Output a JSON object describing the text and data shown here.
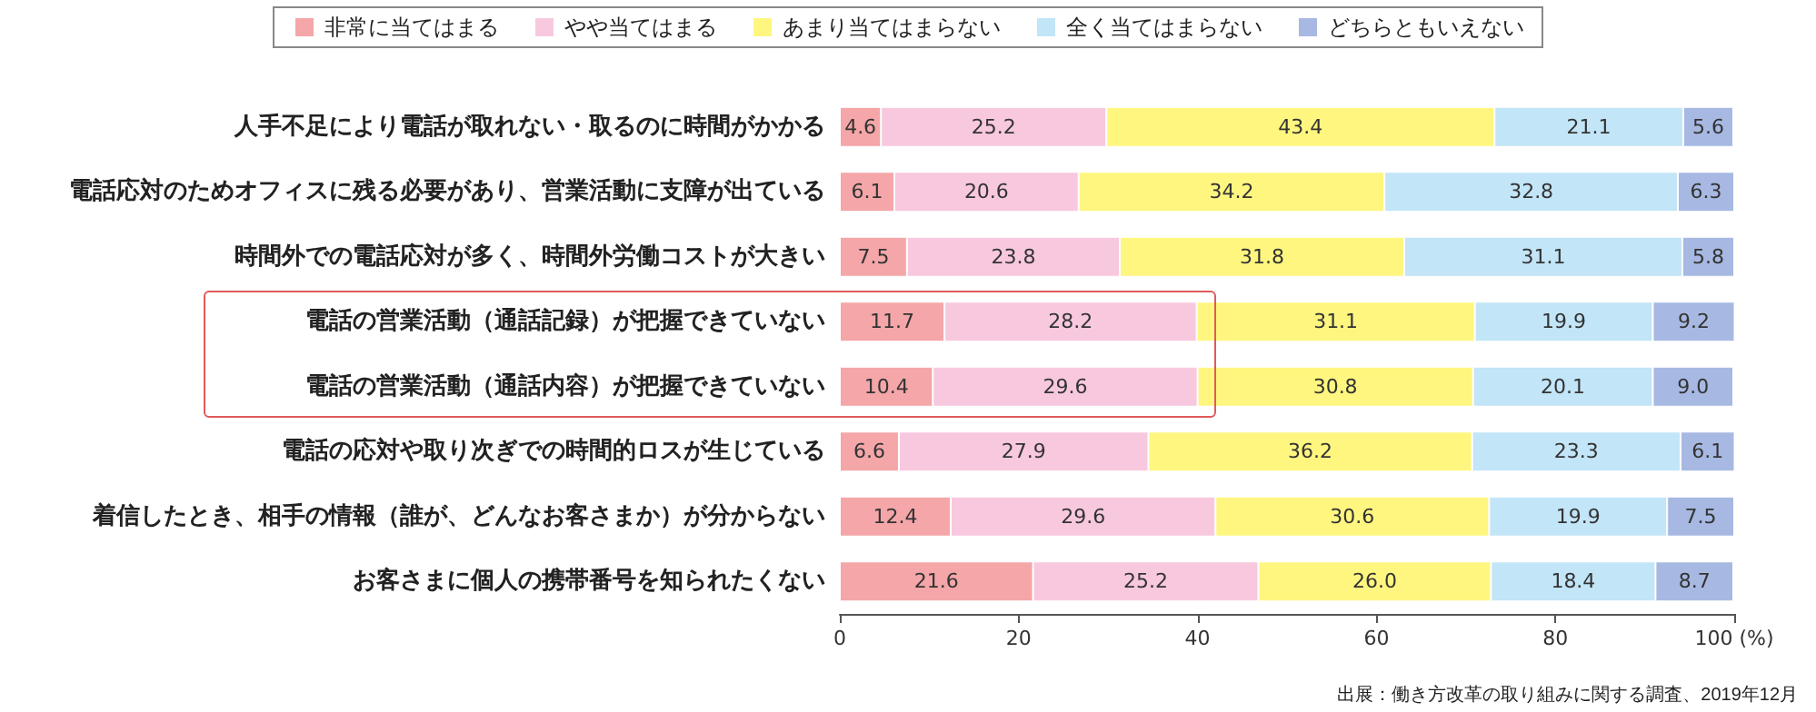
{
  "chart_data": {
    "type": "bar",
    "orientation": "horizontal",
    "stacked": true,
    "data_labels": true,
    "legend": "top",
    "grid": false,
    "categories": [
      "人手不足により電話が取れない・取るのに時間がかかる",
      "電話応対のためオフィスに残る必要があり、営業活動に支障が出ている",
      "時間外での電話応対が多く、時間外労働コストが大きい",
      "電話の営業活動（通話記録）が把握できていない",
      "電話の営業活動（通話内容）が把握できていない",
      "電話の応対や取り次ぎでの時間的ロスが生じている",
      "着信したとき、相手の情報（誰が、どんなお客さまか）が分からない",
      "お客さまに個人の携帯番号を知られたくない"
    ],
    "series": [
      {
        "name": "非常に当てはまる",
        "color": "#f4a6a8",
        "values": [
          4.6,
          6.1,
          7.5,
          11.7,
          10.4,
          6.6,
          12.4,
          21.6
        ],
        "value_labels": [
          "4.6",
          "6.1",
          "7.5",
          "11.7",
          "10.4",
          "6.6",
          "12.4",
          "21.6"
        ]
      },
      {
        "name": "やや当てはまる",
        "color": "#f8c8df",
        "values": [
          25.2,
          20.6,
          23.8,
          28.2,
          29.6,
          27.9,
          29.6,
          25.2
        ]
      },
      {
        "name": "あまり当てはまらない",
        "color": "#fff680",
        "values": [
          43.4,
          34.2,
          31.8,
          31.1,
          30.8,
          36.2,
          30.6,
          26.0
        ],
        "value_labels": [
          "43.4",
          "34.2",
          "31.8",
          "31.1",
          "30.8",
          "36.2",
          "30.6",
          "26.0"
        ]
      },
      {
        "name": "全く当てはまらない",
        "color": "#c2e5f7",
        "values": [
          21.1,
          32.8,
          31.1,
          19.9,
          20.1,
          23.3,
          19.9,
          18.4
        ]
      },
      {
        "name": "どちらともいえない",
        "color": "#a7b9e2",
        "values": [
          5.6,
          6.3,
          5.8,
          9.2,
          9.0,
          6.1,
          7.5,
          8.7
        ],
        "value_labels": [
          "5.6",
          "6.3",
          "5.8",
          "9.2",
          "9.0",
          "6.1",
          "7.5",
          "8.7"
        ]
      }
    ],
    "xlim": [
      0,
      100
    ],
    "xticks": [
      0,
      20,
      40,
      60,
      80,
      {
        "value": 100,
        "label": "100 (%)"
      }
    ],
    "annotations": [
      "出展：働き方改革の取り組みに関する調査、2019年12月"
    ]
  }
}
